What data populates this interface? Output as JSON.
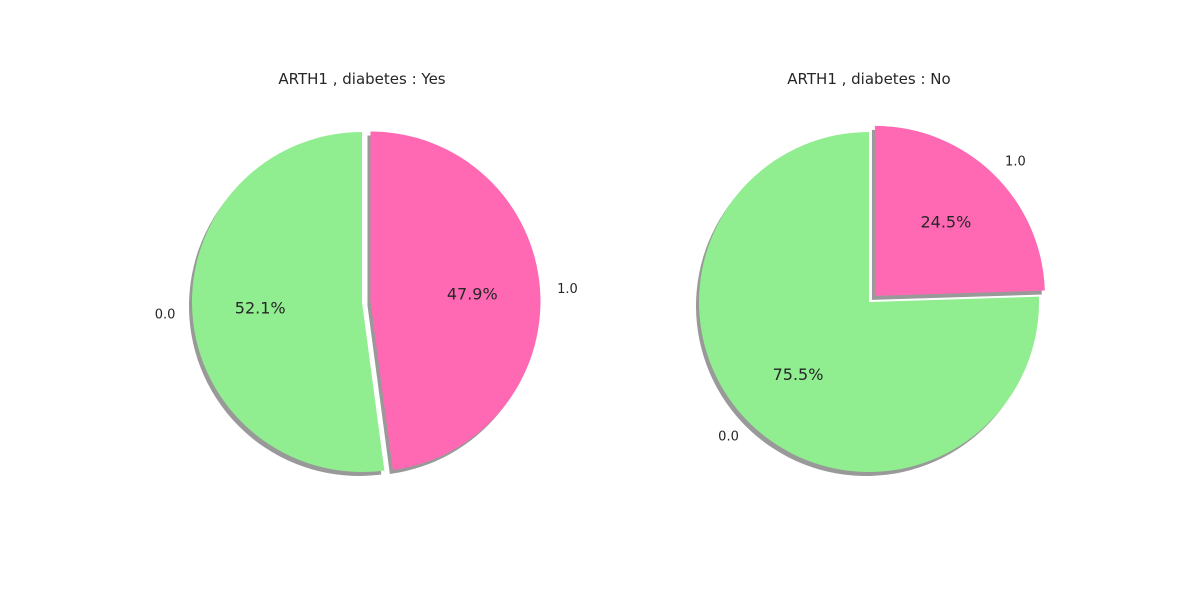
{
  "chart_data": [
    {
      "type": "pie",
      "title": "ARTH1 , diabetes : Yes",
      "categories": [
        "1.0",
        "0.0"
      ],
      "values": [
        47.9,
        52.1
      ],
      "percent_labels": [
        "47.9%",
        "52.1%"
      ],
      "colors": [
        "#ff69b4",
        "#90ee90"
      ],
      "exploded": "1.0",
      "shadow": true,
      "start": "top, clockwise"
    },
    {
      "type": "pie",
      "title": "ARTH1 , diabetes : No",
      "categories": [
        "1.0",
        "0.0"
      ],
      "values": [
        24.5,
        75.5
      ],
      "percent_labels": [
        "24.5%",
        "75.5%"
      ],
      "colors": [
        "#ff69b4",
        "#90ee90"
      ],
      "exploded": "1.0",
      "shadow": true,
      "start": "top, clockwise"
    }
  ]
}
